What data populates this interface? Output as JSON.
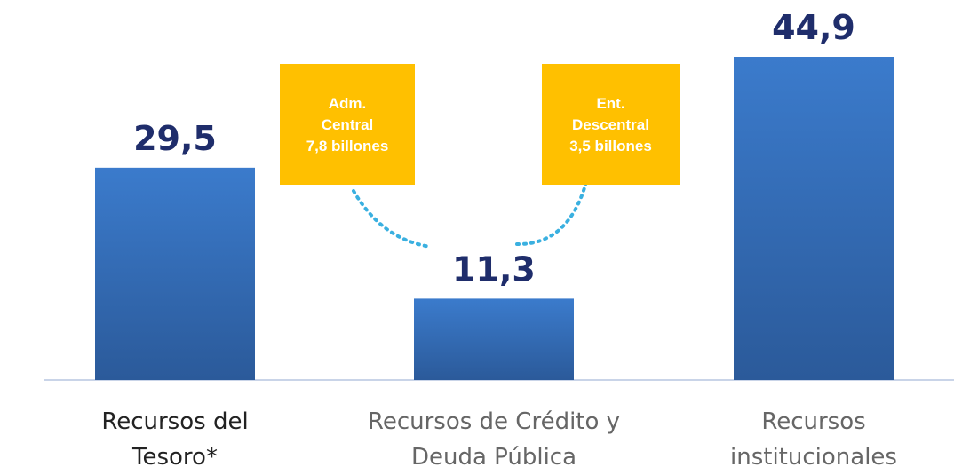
{
  "chart_data": {
    "type": "bar",
    "categories": [
      "Recursos del Tesoro*",
      "Recursos de Crédito y Deuda Pública",
      "Recursos institucionales"
    ],
    "values": [
      29.5,
      11.3,
      44.9
    ],
    "value_labels": [
      "29,5",
      "11,3",
      "44,9"
    ],
    "color": "#3b7bcc",
    "annotations": [
      {
        "lines": [
          "Adm.",
          "Central",
          "7,8 billones"
        ],
        "color": "#ffc000"
      },
      {
        "lines": [
          "Ent.",
          "Descentral",
          "3,5 billones"
        ],
        "color": "#ffc000"
      }
    ]
  }
}
